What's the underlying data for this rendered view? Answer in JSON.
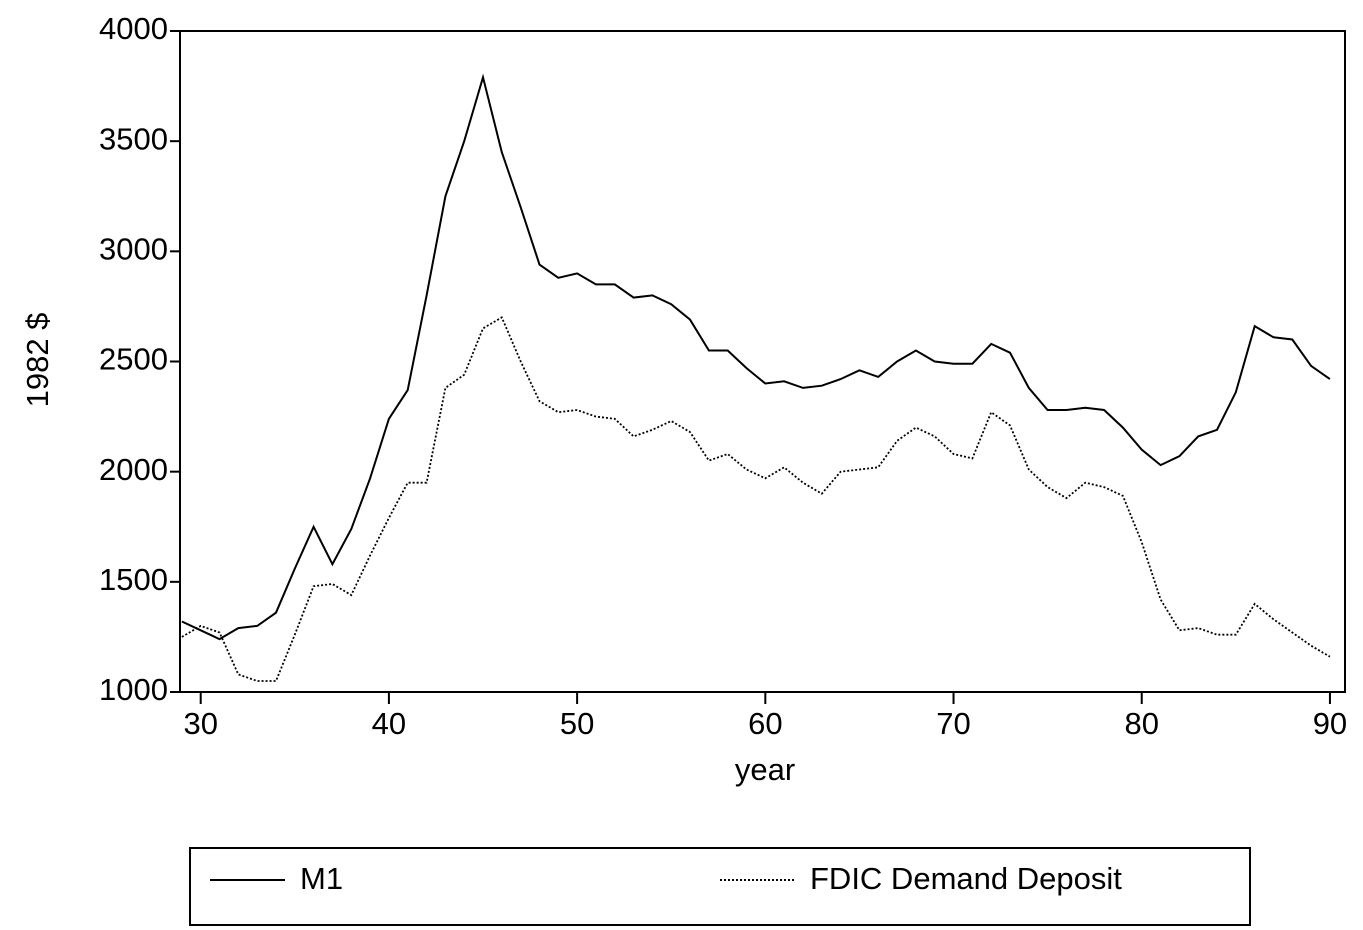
{
  "chart_data": {
    "type": "line",
    "y_label": "1982 $",
    "x_label": "year",
    "x": [
      29,
      30,
      31,
      32,
      33,
      34,
      35,
      36,
      37,
      38,
      39,
      40,
      41,
      42,
      43,
      44,
      45,
      46,
      47,
      48,
      49,
      50,
      51,
      52,
      53,
      54,
      55,
      56,
      57,
      58,
      59,
      60,
      61,
      62,
      63,
      64,
      65,
      66,
      67,
      68,
      69,
      70,
      71,
      72,
      73,
      74,
      75,
      76,
      77,
      78,
      79,
      80,
      81,
      82,
      83,
      84,
      85,
      86,
      87,
      88,
      89,
      90
    ],
    "series": [
      {
        "name": "M1",
        "color": "#000000",
        "style": "solid",
        "values": [
          1320,
          1280,
          1240,
          1290,
          1300,
          1360,
          1560,
          1750,
          1580,
          1740,
          1970,
          2240,
          2370,
          2800,
          3250,
          3500,
          3790,
          3450,
          3200,
          2940,
          2880,
          2900,
          2850,
          2850,
          2790,
          2800,
          2760,
          2690,
          2550,
          2550,
          2470,
          2400,
          2410,
          2380,
          2390,
          2420,
          2460,
          2430,
          2500,
          2550,
          2500,
          2490,
          2490,
          2580,
          2540,
          2380,
          2280,
          2280,
          2290,
          2280,
          2200,
          2100,
          2030,
          2070,
          2160,
          2190,
          2360,
          2660,
          2610,
          2600,
          2480,
          2420
        ]
      },
      {
        "name": "FDIC Demand Deposit",
        "color": "#000000",
        "style": "dotted",
        "values": [
          1250,
          1300,
          1270,
          1080,
          1050,
          1050,
          1260,
          1480,
          1490,
          1440,
          1620,
          1790,
          1950,
          1950,
          2380,
          2440,
          2650,
          2700,
          2500,
          2320,
          2270,
          2280,
          2250,
          2240,
          2160,
          2190,
          2230,
          2180,
          2050,
          2080,
          2010,
          1970,
          2020,
          1950,
          1900,
          2000,
          2010,
          2020,
          2140,
          2200,
          2160,
          2080,
          2060,
          2270,
          2210,
          2010,
          1930,
          1880,
          1950,
          1930,
          1890,
          1680,
          1420,
          1280,
          1290,
          1260,
          1260,
          1400,
          1330,
          1270,
          1210,
          1160
        ]
      }
    ],
    "xlim": [
      28.9,
      90.8
    ],
    "xticks": [
      30,
      40,
      50,
      60,
      70,
      80,
      90
    ],
    "ylim": [
      1000,
      4000
    ],
    "yticks": [
      1000,
      1500,
      2000,
      2500,
      3000,
      3500,
      4000
    ],
    "grid": false,
    "legend": "bottom"
  }
}
